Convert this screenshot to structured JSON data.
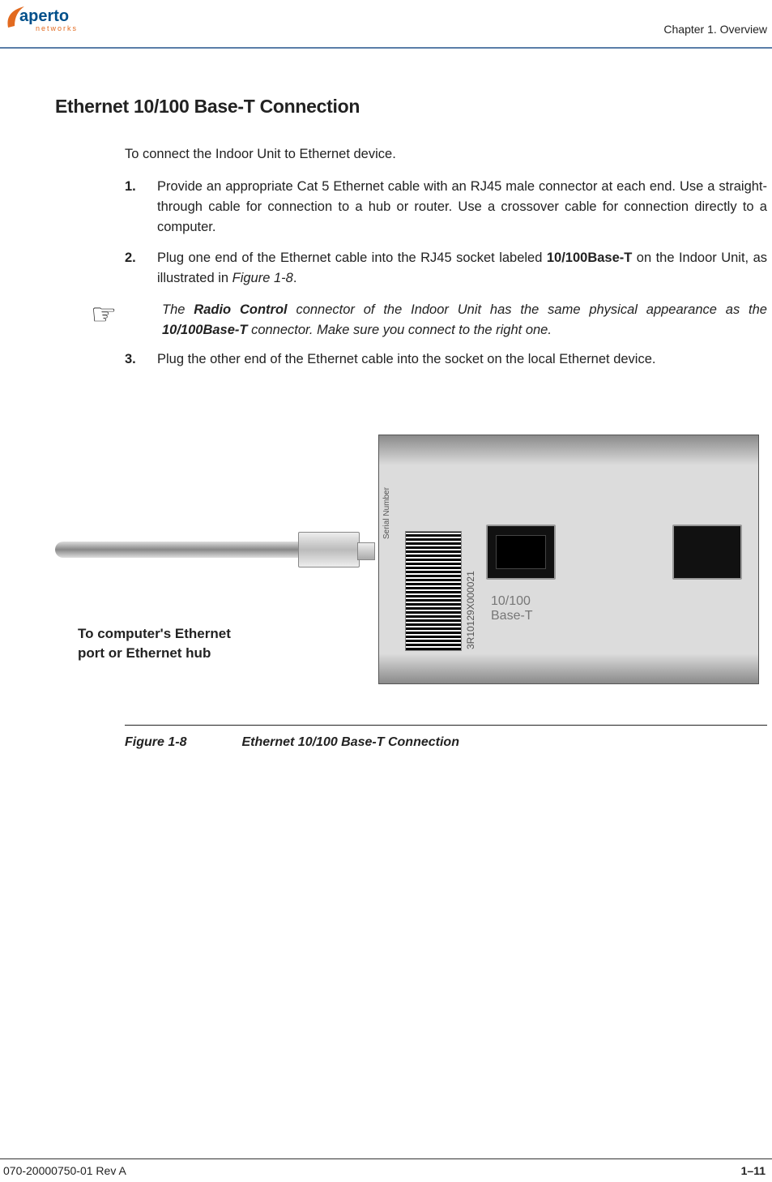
{
  "header": {
    "logo_name": "aperto",
    "logo_sub": "networks",
    "logo_colors": {
      "swoosh": "#e26a1f",
      "text": "#004f8a",
      "sub": "#e26a1f"
    },
    "chapter_label": "Chapter 1.  Overview",
    "rule_color": "#5a7ea8"
  },
  "section": {
    "title": "Ethernet 10/100 Base-T Connection",
    "intro": "To connect the Indoor Unit to Ethernet device.",
    "steps": [
      {
        "number": "1.",
        "text_plain": "Provide an appropriate Cat 5 Ethernet cable with an RJ45 male connector at each end. Use a straight-through cable for connection to a hub or router. Use a crossover cable for connection directly to a computer."
      },
      {
        "number": "2.",
        "text_parts": [
          {
            "t": "Plug one end of the Ethernet cable into the RJ45 socket labeled "
          },
          {
            "t": "10/100Base-T",
            "bold": true
          },
          {
            "t": " on the Indoor Unit, as illustrated in "
          },
          {
            "t": "Figure 1-8",
            "italic": true
          },
          {
            "t": "."
          }
        ]
      },
      {
        "number": "3.",
        "text_plain": "Plug the other end of the Ethernet cable into the socket on the local Ethernet device."
      }
    ],
    "note": {
      "icon_glyph": "☞",
      "text_parts": [
        {
          "t": "The "
        },
        {
          "t": "Radio Control",
          "bold": true
        },
        {
          "t": " connector of the Indoor Unit has the same physical appearance as the "
        },
        {
          "t": "10/100Base-T",
          "bold": true
        },
        {
          "t": " connector. Make sure you connect to the right one."
        }
      ]
    }
  },
  "figure": {
    "cable_label": "To computer's Ethernet\nport or Ethernet hub",
    "port_label_line1": "10/100",
    "port_label_line2": "Base-T",
    "barcode_side_label": "Serial Number",
    "barcode_number": "3R10129X000021",
    "caption_label": "Figure 1-8",
    "caption_title": "Ethernet 10/100 Base-T Connection",
    "arrow_color": "#2a2a2a"
  },
  "footer": {
    "doc_id": "070-20000750-01 Rev A",
    "page_number": "1–11"
  }
}
